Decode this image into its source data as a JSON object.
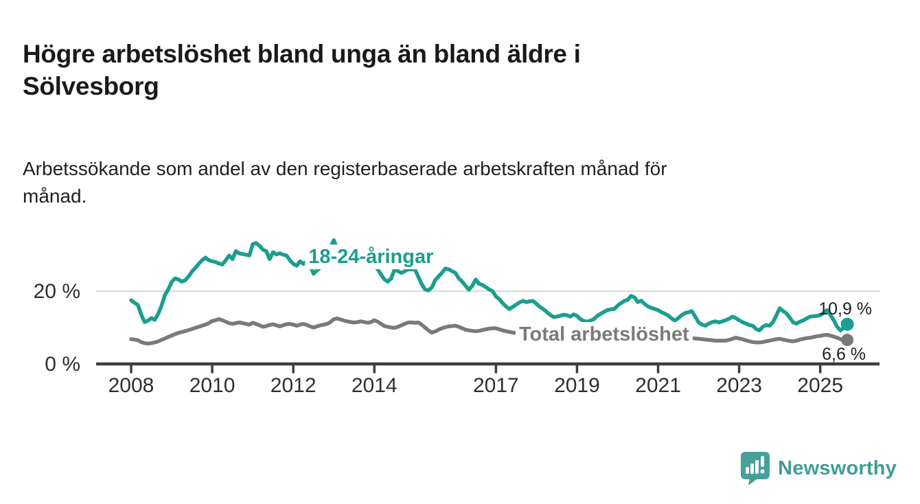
{
  "header": {
    "title_lines": [
      "Högre arbetslöshet bland unga än bland äldre i",
      "Sölvesborg"
    ],
    "subtitle_lines": [
      "Arbetssökande som andel av den registerbaserade arbetskraften månad för",
      "månad."
    ]
  },
  "footer": {
    "brand": "Newsworthy",
    "brand_icon": "speech-bubble-bar-chart-icon",
    "brand_color": "#3f9d98",
    "brand_icon_color": "#45a09a"
  },
  "chart_data": {
    "type": "line",
    "title": "Högre arbetslöshet bland unga än bland äldre i Sölvesborg",
    "subtitle": "Arbetssökande som andel av den registerbaserade arbetskraften månad för månad.",
    "xlabel": "",
    "ylabel": "%",
    "ylim": [
      0,
      35
    ],
    "grid": "single horizontal gridline at 20 %",
    "legend": "inline series labels on chart",
    "frequency": "monthly",
    "x_start": "2008-01",
    "x_end": "2025-09",
    "x_ticks": [
      {
        "year": 2008,
        "label": "2008"
      },
      {
        "year": 2010,
        "label": "2010"
      },
      {
        "year": 2012,
        "label": "2012"
      },
      {
        "year": 2014,
        "label": "2014"
      },
      {
        "year": 2017,
        "label": "2017"
      },
      {
        "year": 2019,
        "label": "2019"
      },
      {
        "year": 2021,
        "label": "2021"
      },
      {
        "year": 2023,
        "label": "2023"
      },
      {
        "year": 2025,
        "label": "2025"
      }
    ],
    "y_axis": {
      "ticks": [
        {
          "value": 0,
          "label": "0 %"
        },
        {
          "value": 20,
          "label": "20 %"
        }
      ]
    },
    "colors": {
      "grid": "#d8d8d8",
      "axis": "#3d3d3d",
      "tick_text": "#2e2e2e",
      "value_text": "#1f1f1f"
    },
    "series": [
      {
        "id": "young",
        "name": "18-24-åringar",
        "color": "#1a9e8f",
        "end_label": "10,9 %",
        "end_value": 10.9,
        "label_anchor": {
          "month_index": 71,
          "value": 29.6
        },
        "values": [
          17.5,
          16.8,
          16.2,
          13.5,
          11.5,
          11.9,
          12.6,
          12.1,
          13.8,
          16.0,
          18.9,
          20.5,
          22.5,
          23.5,
          23.2,
          22.6,
          23.0,
          24.0,
          25.4,
          26.4,
          27.5,
          28.5,
          29.2,
          28.5,
          28.2,
          28.0,
          27.6,
          27.3,
          28.5,
          29.8,
          28.8,
          31.0,
          30.4,
          30.2,
          30.0,
          29.8,
          32.9,
          33.2,
          32.5,
          31.4,
          31.0,
          28.8,
          30.7,
          30.1,
          30.4,
          30.0,
          29.8,
          28.5,
          27.5,
          27.0,
          28.2,
          27.5,
          28.2,
          27.0,
          24.8,
          25.7,
          26.5,
          27.5,
          29.0,
          32.0,
          34.0,
          31.5,
          31.0,
          30.5,
          30.0,
          30.5,
          29.5,
          29.0,
          29.5,
          28.5,
          28.0,
          27.5,
          27.0,
          26.0,
          24.5,
          23.2,
          22.6,
          23.5,
          26.0,
          25.5,
          25.0,
          25.5,
          26.0,
          26.0,
          26.0,
          24.0,
          22.0,
          20.5,
          20.2,
          21.0,
          23.0,
          24.0,
          25.0,
          26.2,
          26.0,
          25.5,
          25.0,
          23.5,
          22.6,
          21.5,
          20.4,
          21.5,
          23.2,
          22.0,
          21.7,
          21.1,
          20.5,
          20.0,
          18.5,
          17.8,
          16.7,
          15.8,
          15.1,
          15.7,
          16.3,
          16.9,
          17.3,
          17.0,
          17.2,
          17.3,
          16.5,
          15.7,
          15.1,
          14.3,
          13.5,
          12.9,
          13.0,
          13.2,
          13.5,
          13.4,
          13.0,
          13.6,
          13.2,
          12.3,
          11.8,
          11.6,
          11.9,
          12.3,
          13.2,
          13.8,
          14.3,
          14.8,
          15.0,
          15.1,
          16.0,
          16.7,
          17.3,
          17.6,
          18.7,
          18.3,
          17.0,
          17.4,
          16.5,
          15.8,
          15.4,
          15.1,
          14.8,
          14.2,
          13.8,
          13.3,
          12.5,
          11.9,
          12.6,
          13.4,
          14.0,
          14.2,
          14.5,
          13.0,
          11.4,
          10.8,
          10.5,
          11.1,
          11.5,
          11.7,
          11.4,
          11.7,
          12.0,
          12.4,
          13.0,
          12.6,
          12.0,
          11.5,
          11.1,
          10.7,
          10.5,
          9.6,
          9.2,
          10.2,
          10.7,
          10.5,
          11.5,
          13.3,
          15.3,
          14.5,
          13.9,
          12.7,
          11.4,
          11.1,
          11.6,
          12.0,
          12.5,
          13.0,
          13.1,
          13.2,
          13.4,
          14.0,
          14.8,
          13.5,
          12.0,
          10.2,
          9.2,
          9.9,
          10.9
        ]
      },
      {
        "id": "total",
        "name": "Total arbetslöshet",
        "color": "#7a7a7a",
        "end_label": "6,6 %",
        "end_value": 6.6,
        "label_anchor": {
          "month_index": 140,
          "value": 8.3
        },
        "values": [
          6.8,
          6.7,
          6.5,
          6.0,
          5.7,
          5.6,
          5.7,
          5.9,
          6.2,
          6.6,
          7.0,
          7.4,
          7.8,
          8.2,
          8.5,
          8.8,
          9.0,
          9.3,
          9.6,
          9.9,
          10.2,
          10.5,
          10.8,
          11.2,
          11.8,
          12.0,
          12.3,
          12.0,
          11.6,
          11.2,
          11.0,
          11.2,
          11.4,
          11.2,
          11.0,
          10.8,
          11.3,
          11.0,
          10.6,
          10.2,
          10.4,
          10.7,
          10.9,
          10.6,
          10.3,
          10.6,
          10.9,
          11.0,
          10.8,
          10.5,
          10.8,
          11.0,
          10.7,
          10.3,
          10.0,
          10.3,
          10.6,
          10.8,
          11.0,
          11.5,
          12.3,
          12.5,
          12.2,
          11.9,
          11.7,
          11.5,
          11.4,
          11.5,
          11.7,
          11.5,
          11.3,
          11.5,
          12.0,
          11.6,
          11.0,
          10.4,
          10.2,
          10.0,
          9.9,
          10.2,
          10.6,
          11.0,
          11.4,
          11.4,
          11.3,
          11.4,
          10.8,
          10.0,
          9.2,
          8.6,
          8.9,
          9.4,
          9.8,
          10.1,
          10.3,
          10.4,
          10.5,
          10.2,
          9.8,
          9.4,
          9.2,
          9.1,
          9.0,
          9.1,
          9.3,
          9.5,
          9.7,
          9.8,
          9.8,
          9.5,
          9.2,
          9.0,
          8.8,
          8.6,
          8.5,
          8.4,
          8.3,
          8.2,
          8.1,
          8.0,
          7.9,
          7.8,
          7.7,
          7.6,
          7.5,
          7.4,
          7.3,
          7.3,
          7.2,
          7.2,
          7.1,
          7.1,
          7.1,
          7.0,
          7.0,
          7.0,
          7.1,
          7.1,
          7.2,
          7.3,
          7.3,
          7.4,
          7.5,
          7.6,
          7.7,
          7.8,
          8.2,
          8.8,
          9.2,
          9.4,
          9.3,
          9.2,
          9.0,
          8.8,
          8.7,
          8.6,
          8.5,
          8.4,
          8.2,
          8.0,
          7.8,
          7.6,
          7.5,
          7.4,
          7.3,
          7.2,
          7.1,
          7.0,
          6.9,
          6.8,
          6.7,
          6.6,
          6.5,
          6.4,
          6.4,
          6.4,
          6.4,
          6.6,
          6.9,
          7.2,
          7.0,
          6.8,
          6.5,
          6.2,
          6.0,
          5.9,
          5.9,
          6.0,
          6.2,
          6.4,
          6.6,
          6.8,
          6.9,
          6.7,
          6.5,
          6.3,
          6.2,
          6.4,
          6.7,
          6.9,
          7.1,
          7.2,
          7.4,
          7.6,
          7.7,
          7.9,
          8.0,
          7.8,
          7.5,
          7.2,
          6.8,
          6.6,
          6.6
        ]
      }
    ]
  }
}
